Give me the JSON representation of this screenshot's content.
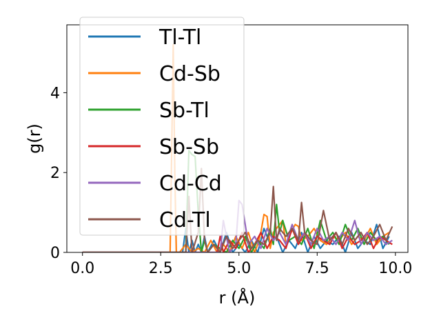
{
  "chart_data": {
    "type": "line",
    "xlabel": "r (Å)",
    "ylabel": "g(r)",
    "xlim": [
      -0.5,
      10.4
    ],
    "ylim": [
      0,
      5.7
    ],
    "xticks": [
      "0.0",
      "2.5",
      "5.0",
      "7.5",
      "10.0"
    ],
    "xtick_values": [
      0,
      2.5,
      5,
      7.5,
      10
    ],
    "yticks": [
      "0",
      "2",
      "4"
    ],
    "ytick_values": [
      0,
      2,
      4
    ],
    "grid": false,
    "legend_position": "top-left",
    "series": [
      {
        "name": "Tl-Tl",
        "color": "#1f77b4",
        "x": [
          0,
          3.2,
          3.3,
          3.4,
          3.5,
          3.6,
          3.7,
          3.8,
          3.9,
          4.0,
          4.2,
          4.4,
          4.6,
          4.8,
          5.0,
          5.2,
          5.4,
          5.6,
          5.8,
          6.0,
          6.2,
          6.4,
          6.6,
          6.8,
          7.0,
          7.2,
          7.4,
          7.6,
          7.8,
          8.0,
          8.2,
          8.4,
          8.6,
          8.8,
          9.0,
          9.2,
          9.4,
          9.6,
          9.8
        ],
        "y": [
          0,
          0,
          0.6,
          0,
          0.3,
          0,
          0.2,
          0,
          0.4,
          0,
          0.3,
          0,
          0.5,
          0,
          0.2,
          0,
          0.3,
          0,
          0.6,
          0.2,
          0.4,
          0,
          0.3,
          0.1,
          0.5,
          0,
          0.4,
          0.1,
          0.3,
          0.2,
          0.4,
          0,
          0.5,
          0.1,
          0.3,
          0.2,
          0.7,
          0.1,
          0.4
        ]
      },
      {
        "name": "Cd-Sb",
        "color": "#ff7f0e",
        "x": [
          0,
          2.8,
          2.85,
          2.9,
          2.95,
          3.0,
          3.1,
          3.3,
          3.5,
          3.7,
          3.9,
          4.1,
          4.3,
          4.5,
          4.7,
          4.9,
          5.1,
          5.3,
          5.5,
          5.6,
          5.7,
          5.8,
          5.9,
          6.0,
          6.1,
          6.2,
          6.4,
          6.5,
          6.6,
          6.8,
          6.9,
          7.0,
          7.2,
          7.4,
          7.6,
          7.8,
          8.0,
          8.2,
          8.4,
          8.6,
          8.8,
          9.0,
          9.2,
          9.4,
          9.6,
          9.8
        ],
        "y": [
          0,
          0,
          2.5,
          5.2,
          2.0,
          0,
          0,
          0.2,
          0,
          0.1,
          0,
          0.3,
          0,
          0.2,
          0,
          0.4,
          0.1,
          0.5,
          0,
          0.2,
          0.5,
          0.95,
          0.9,
          0.1,
          0.5,
          0.6,
          0.8,
          0.2,
          0.4,
          0.7,
          0.65,
          0.3,
          0.4,
          0.6,
          0.3,
          0.2,
          0.4,
          0.3,
          0.5,
          0.2,
          0.4,
          0.3,
          0.6,
          0.2,
          0.4,
          0.5
        ]
      },
      {
        "name": "Sb-Tl",
        "color": "#2ca02c",
        "x": [
          0,
          3.3,
          3.4,
          3.5,
          3.6,
          3.7,
          3.8,
          3.9,
          4.0,
          4.2,
          4.4,
          4.6,
          4.8,
          5.0,
          5.2,
          5.4,
          5.6,
          5.8,
          6.0,
          6.1,
          6.2,
          6.3,
          6.4,
          6.6,
          6.8,
          7.0,
          7.2,
          7.4,
          7.6,
          7.8,
          8.0,
          8.2,
          8.4,
          8.6,
          8.8,
          9.0,
          9.2,
          9.4,
          9.6,
          9.8
        ],
        "y": [
          0,
          0,
          2.55,
          2.45,
          2.4,
          1.0,
          0,
          0.3,
          0,
          0.2,
          0.1,
          0,
          0.3,
          0.1,
          0.4,
          0,
          0.3,
          0.1,
          0.6,
          0.2,
          1.2,
          0.5,
          0.8,
          0.3,
          0.4,
          0.2,
          0.6,
          0.1,
          0.8,
          0.3,
          0.5,
          0.2,
          0.7,
          0.3,
          0.6,
          0.2,
          0.5,
          0.3,
          0.4,
          0.2
        ]
      },
      {
        "name": "Sb-Sb",
        "color": "#d62728",
        "x": [
          0,
          4.3,
          4.4,
          4.5,
          4.7,
          4.9,
          5.1,
          5.3,
          5.5,
          5.7,
          5.9,
          6.1,
          6.3,
          6.5,
          6.7,
          6.9,
          7.1,
          7.3,
          7.5,
          7.7,
          7.9,
          8.1,
          8.3,
          8.5,
          8.7,
          8.9,
          9.1,
          9.3,
          9.5,
          9.7,
          9.9
        ],
        "y": [
          0,
          0,
          0.4,
          0,
          0.3,
          0.1,
          0.5,
          0,
          0.2,
          0.5,
          0.1,
          0.4,
          0.3,
          0.1,
          0.6,
          0.2,
          0.5,
          0.1,
          0.4,
          0.3,
          0.2,
          0.5,
          0.1,
          0.4,
          0.2,
          0.3,
          0.5,
          0.1,
          0.4,
          0.3,
          0.2
        ]
      },
      {
        "name": "Cd-Cd",
        "color": "#9467bd",
        "x": [
          0,
          4.4,
          4.5,
          4.7,
          4.9,
          5.0,
          5.1,
          5.3,
          5.5,
          5.7,
          5.9,
          6.1,
          6.3,
          6.5,
          6.7,
          6.9,
          7.1,
          7.3,
          7.5,
          7.7,
          7.9,
          8.1,
          8.3,
          8.5,
          8.7,
          8.9,
          9.1,
          9.3,
          9.5,
          9.7,
          9.9
        ],
        "y": [
          0,
          0,
          0.8,
          0,
          0.2,
          1.3,
          1.2,
          0.2,
          0.4,
          0.1,
          0.6,
          0.3,
          0.5,
          0.2,
          0.7,
          0.3,
          0.5,
          0.2,
          0.6,
          0.3,
          0.4,
          0.2,
          0.5,
          0.3,
          0.8,
          0.2,
          0.5,
          0.3,
          0.4,
          0.2,
          0.3
        ]
      },
      {
        "name": "Cd-Tl",
        "color": "#8c564b",
        "x": [
          0,
          3.3,
          3.4,
          3.5,
          3.7,
          3.8,
          3.9,
          4.0,
          4.2,
          4.4,
          4.6,
          4.8,
          5.0,
          5.2,
          5.4,
          5.6,
          5.8,
          6.0,
          6.1,
          6.2,
          6.3,
          6.5,
          6.7,
          6.9,
          7.0,
          7.1,
          7.3,
          7.5,
          7.7,
          7.9,
          8.1,
          8.3,
          8.5,
          8.7,
          8.9,
          9.1,
          9.3,
          9.5,
          9.7,
          9.9
        ],
        "y": [
          0,
          0,
          1.4,
          0,
          0.5,
          2.1,
          0.3,
          0,
          0.2,
          0,
          0.4,
          0.1,
          0.3,
          0.5,
          0.1,
          0.3,
          0.2,
          0.5,
          1.65,
          0.3,
          0.6,
          0.4,
          0.6,
          0.3,
          1.25,
          0.5,
          0.3,
          0.2,
          1.05,
          0.3,
          0.5,
          0.2,
          0.6,
          0.3,
          0.5,
          0.2,
          0.4,
          0.7,
          0.3,
          0.65
        ]
      }
    ]
  }
}
